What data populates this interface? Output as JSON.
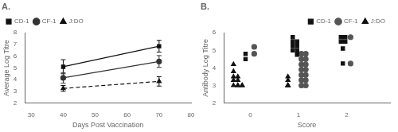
{
  "chart_data": [
    {
      "type": "line",
      "title": "A.",
      "xlabel": "Days Post Vaccination",
      "ylabel": "Average Log Titre",
      "xlim": [
        28,
        80
      ],
      "ylim": [
        2,
        8
      ],
      "xticks": [
        30,
        40,
        50,
        60,
        70,
        80
      ],
      "yticks": [
        2,
        3,
        4,
        5,
        6,
        7,
        8
      ],
      "grid": false,
      "legend": "upper left",
      "series": [
        {
          "name": "CD-1",
          "color": "#111111",
          "marker": "square",
          "line_style": "solid",
          "x": [
            40,
            70
          ],
          "values": [
            5.1,
            6.85
          ],
          "errors": [
            0.6,
            0.5
          ]
        },
        {
          "name": "CF-1",
          "color": "#333333",
          "marker": "circle",
          "line_style": "solid",
          "x": [
            40,
            70
          ],
          "values": [
            4.15,
            5.55
          ],
          "errors": [
            0.45,
            0.5
          ]
        },
        {
          "name": "J:DO",
          "color": "#111111",
          "marker": "triangle",
          "line_style": "dashed",
          "x": [
            40,
            70
          ],
          "values": [
            3.25,
            3.85
          ],
          "errors": [
            0.25,
            0.4
          ]
        }
      ]
    },
    {
      "type": "scatter",
      "title": "B.",
      "xlabel": "Score",
      "ylabel": "Antibody Log Titre",
      "xlim": [
        -0.55,
        2.9
      ],
      "ylim": [
        2,
        6
      ],
      "xticks": [
        0,
        1,
        2
      ],
      "yticks": [
        2,
        3,
        4,
        5,
        6
      ],
      "grid": false,
      "legend": "upper right",
      "series": [
        {
          "name": "CD-1",
          "color": "#111111",
          "marker": "square",
          "x": [
            -0.1,
            -0.1,
            0.88,
            0.88,
            0.88,
            0.88,
            0.97,
            0.97,
            0.97,
            0.97,
            1.88,
            1.88,
            1.97,
            1.97,
            1.92,
            1.92
          ],
          "values": [
            4.8,
            4.5,
            5.75,
            5.5,
            5.25,
            5.0,
            5.5,
            5.25,
            5.0,
            4.75,
            5.75,
            5.5,
            5.75,
            5.5,
            5.1,
            4.25
          ]
        },
        {
          "name": "CF-1",
          "color": "#555555",
          "marker": "circle",
          "x": [
            0.08,
            0.08,
            1.06,
            1.06,
            1.06,
            1.06,
            1.06,
            1.06,
            1.06,
            1.15,
            1.15,
            1.15,
            1.15,
            1.15,
            1.15,
            1.15,
            2.08,
            2.08
          ],
          "values": [
            5.2,
            4.8,
            4.8,
            4.5,
            4.2,
            3.9,
            3.6,
            3.3,
            3.0,
            4.8,
            4.5,
            4.2,
            3.9,
            3.6,
            3.3,
            3.0,
            5.75,
            4.25
          ]
        },
        {
          "name": "J:DO",
          "color": "#111111",
          "marker": "triangle",
          "x": [
            -0.35,
            -0.35,
            -0.35,
            -0.35,
            -0.35,
            -0.26,
            -0.26,
            -0.26,
            -0.26,
            -0.17,
            -0.17,
            0.78,
            0.78,
            0.78,
            0.78,
            0.78
          ],
          "values": [
            4.2,
            3.8,
            3.5,
            3.3,
            3.0,
            3.0,
            3.5,
            3.3,
            3.0,
            3.0,
            3.0,
            3.5,
            3.3,
            3.0,
            3.0,
            3.0
          ]
        }
      ]
    }
  ]
}
